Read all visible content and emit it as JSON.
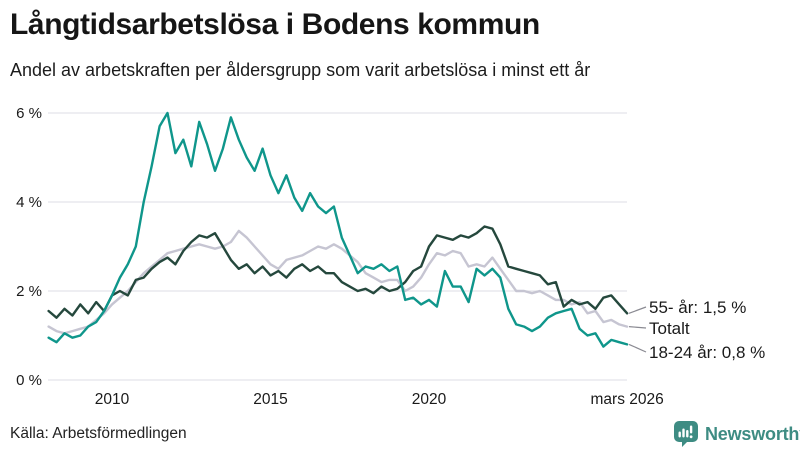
{
  "chart_data": {
    "type": "line",
    "title": "Långtidsarbetslösa i Bodens kommun",
    "subtitle": "Andel av arbetskraften per åldersgrupp som varit arbetslösa i minst ett år",
    "source": "Källa: Arbetsförmedlingen",
    "x_unit": "year",
    "x_start": 2008.0,
    "x_step": 0.25,
    "x_ticks": [
      {
        "value": 2010,
        "label": "2010"
      },
      {
        "value": 2015,
        "label": "2015"
      },
      {
        "value": 2020,
        "label": "2020"
      },
      {
        "value": 2026.25,
        "label": "mars 2026"
      }
    ],
    "y_ticks": [
      {
        "value": 0,
        "label": "0 %"
      },
      {
        "value": 2,
        "label": "2 %"
      },
      {
        "value": 4,
        "label": "4 %"
      },
      {
        "value": 6,
        "label": "6 %"
      }
    ],
    "ylim": [
      0,
      6.3
    ],
    "grid": true,
    "legend_position": "line-end-labels",
    "series": [
      {
        "name": "55- år",
        "end_label": "55- år: 1,5 %",
        "latest_value": "1,5 %",
        "color": "#25483d",
        "values": [
          1.55,
          1.4,
          1.6,
          1.45,
          1.7,
          1.5,
          1.75,
          1.55,
          1.9,
          2.0,
          1.9,
          2.25,
          2.3,
          2.5,
          2.65,
          2.75,
          2.6,
          2.9,
          3.1,
          3.25,
          3.2,
          3.3,
          3.0,
          2.7,
          2.5,
          2.6,
          2.4,
          2.55,
          2.35,
          2.45,
          2.3,
          2.5,
          2.6,
          2.45,
          2.55,
          2.4,
          2.4,
          2.2,
          2.1,
          2.0,
          2.05,
          1.95,
          2.1,
          2.0,
          2.05,
          2.2,
          2.45,
          2.55,
          3.0,
          3.25,
          3.2,
          3.15,
          3.25,
          3.2,
          3.3,
          3.45,
          3.4,
          3.05,
          2.55,
          2.5,
          2.45,
          2.4,
          2.35,
          2.15,
          2.2,
          1.65,
          1.8,
          1.7,
          1.75,
          1.6,
          1.85,
          1.9,
          1.7,
          1.5
        ]
      },
      {
        "name": "Totalt",
        "end_label": "Totalt",
        "latest_value": "1,2 %",
        "color": "#c6c5d2",
        "values": [
          1.2,
          1.1,
          1.05,
          1.1,
          1.15,
          1.2,
          1.35,
          1.5,
          1.7,
          1.85,
          2.0,
          2.2,
          2.4,
          2.55,
          2.7,
          2.85,
          2.9,
          2.95,
          3.0,
          3.05,
          3.0,
          2.95,
          3.0,
          3.1,
          3.35,
          3.2,
          3.0,
          2.8,
          2.6,
          2.5,
          2.7,
          2.75,
          2.8,
          2.9,
          3.0,
          2.95,
          3.05,
          2.95,
          2.8,
          2.65,
          2.4,
          2.3,
          2.2,
          2.25,
          2.25,
          2.0,
          2.1,
          2.3,
          2.6,
          2.85,
          2.8,
          2.9,
          2.85,
          2.55,
          2.6,
          2.55,
          2.75,
          2.5,
          2.25,
          2.0,
          2.0,
          1.95,
          2.0,
          1.9,
          1.8,
          1.8,
          1.7,
          1.75,
          1.5,
          1.55,
          1.3,
          1.35,
          1.25,
          1.2
        ]
      },
      {
        "name": "18-24 år",
        "end_label": "18-24 år: 0,8 %",
        "latest_value": "0,8 %",
        "color": "#0f968b",
        "values": [
          0.95,
          0.85,
          1.05,
          0.95,
          1.0,
          1.2,
          1.3,
          1.55,
          1.9,
          2.3,
          2.6,
          3.0,
          4.0,
          4.8,
          5.7,
          6.0,
          5.1,
          5.4,
          4.8,
          5.8,
          5.3,
          4.7,
          5.2,
          5.9,
          5.4,
          5.0,
          4.7,
          5.2,
          4.6,
          4.2,
          4.6,
          4.1,
          3.8,
          4.2,
          3.9,
          3.75,
          3.9,
          3.2,
          2.8,
          2.4,
          2.55,
          2.5,
          2.6,
          2.45,
          2.55,
          1.8,
          1.85,
          1.7,
          1.8,
          1.65,
          2.45,
          2.1,
          2.1,
          1.75,
          2.5,
          2.35,
          2.5,
          2.3,
          1.6,
          1.25,
          1.2,
          1.1,
          1.2,
          1.4,
          1.5,
          1.55,
          1.6,
          1.15,
          1.0,
          1.05,
          0.75,
          0.9,
          0.85,
          0.8
        ]
      }
    ]
  },
  "footer": {
    "brand": "Newsworthy"
  },
  "colors": {
    "grid": "#e4e4e9",
    "text": "#1a1a1a",
    "connector": "#8a8a92",
    "brand_teal": "#3e8c83"
  }
}
